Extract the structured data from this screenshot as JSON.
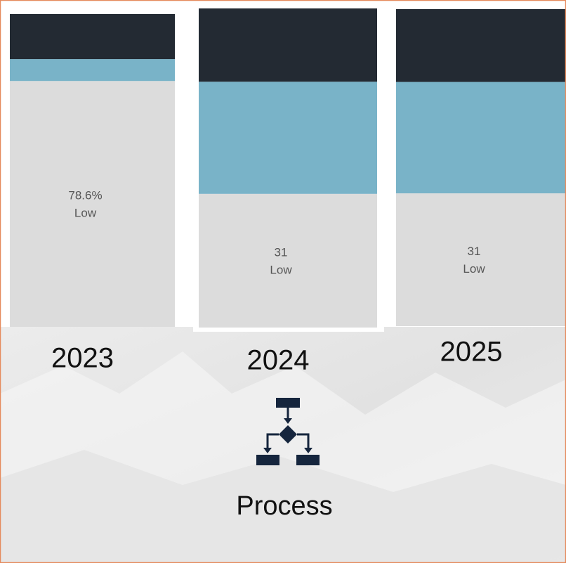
{
  "chart_data": [
    {
      "type": "stacked-bar",
      "categories": [
        "2023"
      ],
      "series": [
        {
          "name": "Low",
          "color": "#dcdcdc",
          "values": [
            78.6
          ],
          "value_labels": [
            "78.6%"
          ]
        },
        {
          "color": "#79b3c8",
          "values": [
            7.0
          ]
        },
        {
          "color": "#232a33",
          "values": [
            14.4
          ]
        }
      ]
    },
    {
      "type": "stacked-bar",
      "categories": [
        "2024"
      ],
      "series": [
        {
          "name": "Low",
          "color": "#dcdcdc",
          "values": [
            31
          ]
        },
        {
          "color": "#79b3c8",
          "values": [
            26
          ]
        },
        {
          "color": "#232a33",
          "values": [
            17
          ]
        }
      ]
    },
    {
      "type": "stacked-bar",
      "categories": [
        "2025"
      ],
      "series": [
        {
          "name": "Low",
          "color": "#dcdcdc",
          "values": [
            31
          ]
        },
        {
          "color": "#79b3c8",
          "values": [
            26
          ]
        },
        {
          "color": "#232a33",
          "values": [
            17
          ]
        }
      ]
    }
  ],
  "caption": "Process"
}
